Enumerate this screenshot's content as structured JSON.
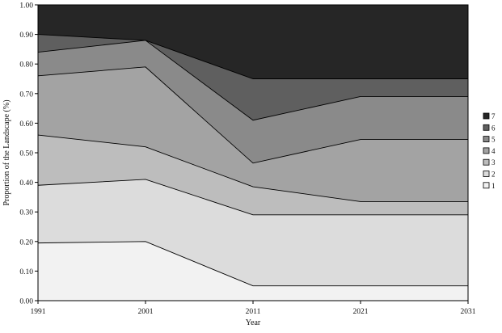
{
  "chart_data": {
    "type": "area",
    "stacked": true,
    "x": [
      1991,
      2001,
      2011,
      2021,
      2031
    ],
    "x_tick_labels": [
      "1991",
      "2001",
      "2011",
      "2021",
      "2031"
    ],
    "xlabel": "Year",
    "ylabel": "Proportion of the Landscape (%)",
    "ylim": [
      0,
      1
    ],
    "y_tick_labels": [
      "0.00",
      "0.10",
      "0.20",
      "0.30",
      "0.40",
      "0.50",
      "0.60",
      "0.70",
      "0.80",
      "0.90",
      "1.00"
    ],
    "grid": false,
    "legend_position": "right",
    "series": [
      {
        "name": "1",
        "color": "#f2f2f2",
        "values": [
          0.195,
          0.2,
          0.05,
          0.05,
          0.05
        ]
      },
      {
        "name": "2",
        "color": "#dcdcdc",
        "values": [
          0.195,
          0.21,
          0.24,
          0.24,
          0.24
        ]
      },
      {
        "name": "3",
        "color": "#bdbdbd",
        "values": [
          0.17,
          0.11,
          0.095,
          0.045,
          0.045
        ]
      },
      {
        "name": "4",
        "color": "#a3a3a3",
        "values": [
          0.2,
          0.27,
          0.08,
          0.21,
          0.21
        ]
      },
      {
        "name": "5",
        "color": "#8a8a8a",
        "values": [
          0.08,
          0.09,
          0.145,
          0.145,
          0.145
        ]
      },
      {
        "name": "6",
        "color": "#5f5f5f",
        "values": [
          0.06,
          0.0,
          0.14,
          0.06,
          0.06
        ]
      },
      {
        "name": "7",
        "color": "#262626",
        "values": [
          0.1,
          0.12,
          0.25,
          0.25,
          0.25
        ]
      }
    ]
  }
}
